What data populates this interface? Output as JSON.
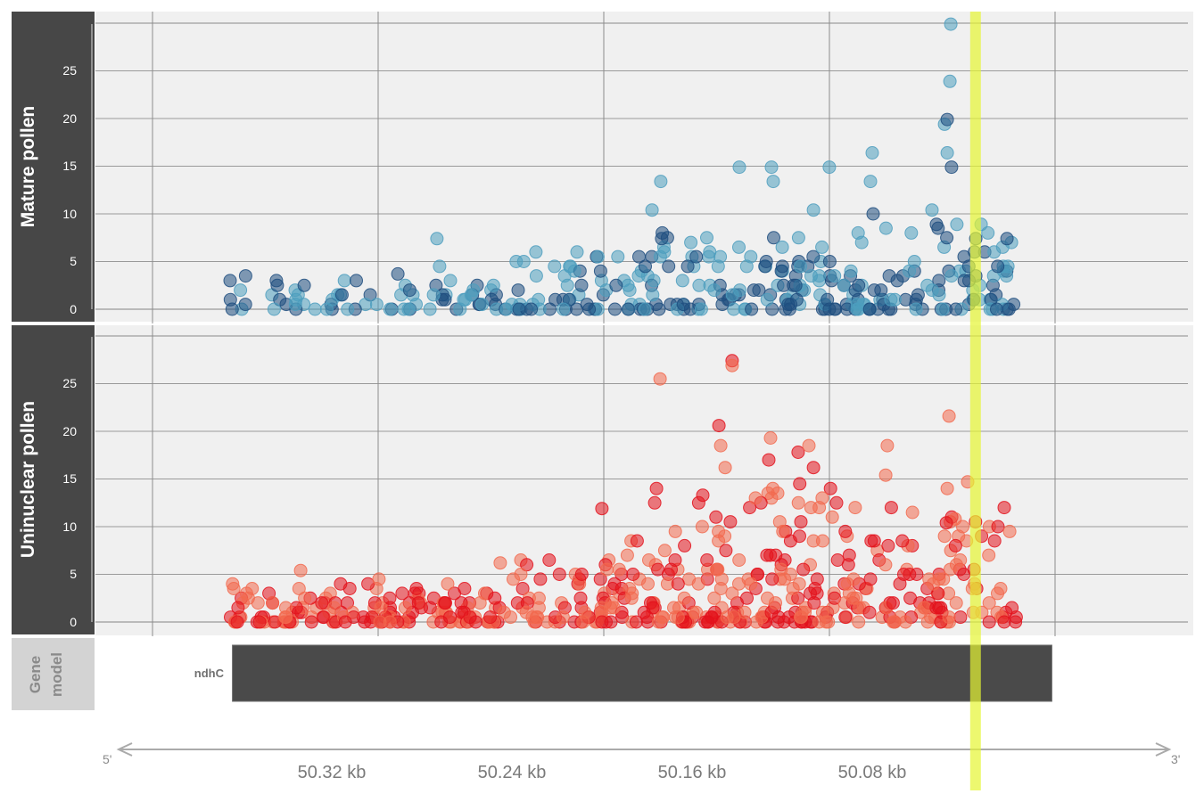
{
  "chart_data": {
    "type": "scatter",
    "colors": {
      "mature_light": "#4d9ebe",
      "mature_dark": "#1f4e7f",
      "uninuclear_light": "#f26a4f",
      "uninuclear_dark": "#e3121c",
      "highlight": "#e5f532",
      "gene_block": "#4a4a4a",
      "panel_bg": "#f0f0f0",
      "title_bg": "#474747"
    },
    "tracks": [
      {
        "id": "mature",
        "title": "Mature pollen",
        "yticks": [
          "0",
          "5",
          "10",
          "15",
          "20",
          "25"
        ],
        "ylim": [
          0,
          30
        ]
      },
      {
        "id": "uninuclear",
        "title": "Uninuclear pollen",
        "yticks": [
          "0",
          "5",
          "10",
          "15",
          "20",
          "25"
        ],
        "ylim": [
          0,
          30
        ]
      }
    ],
    "gene_model": {
      "title_line1": "Gene",
      "title_line2": "model",
      "gene": "ndhC",
      "start_kb": 50.375,
      "end_kb": 50.01
    },
    "x_axis": {
      "ticks": [
        "50.32 kb",
        "50.24 kb",
        "50.16 kb",
        "50.08 kb"
      ],
      "left_end": "5'",
      "right_end": "3'",
      "xlim_kb": [
        50.436,
        49.947
      ]
    },
    "highlight_kb": 50.044,
    "mature_points": [],
    "uninuclear_points": []
  }
}
